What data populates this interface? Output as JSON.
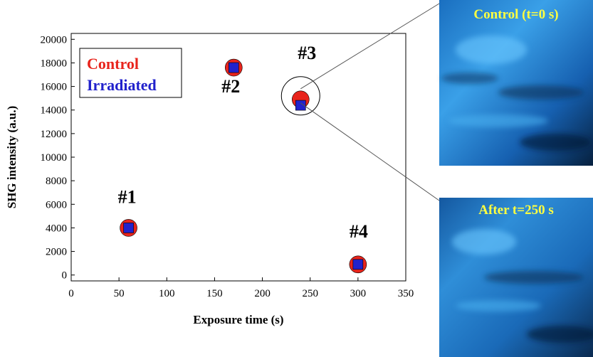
{
  "chart_data": {
    "type": "scatter",
    "xlabel": "Exposure time (s)",
    "ylabel": "SHG intensity (a.u.)",
    "x": [
      60,
      170,
      240,
      300
    ],
    "series": [
      {
        "name": "Control",
        "color": "#e8241c",
        "values": [
          4000,
          17600,
          14900,
          900
        ]
      },
      {
        "name": "Irradiated",
        "color": "#2222cc",
        "values": [
          4000,
          17600,
          14400,
          900
        ]
      }
    ],
    "annotations": [
      "#1",
      "#2",
      "#3",
      "#4"
    ],
    "xlim": [
      0,
      350
    ],
    "xticks": [
      0,
      50,
      100,
      150,
      200,
      250,
      300,
      350
    ],
    "ylim": [
      -500,
      20500
    ],
    "yticks": [
      0,
      2000,
      4000,
      6000,
      8000,
      10000,
      12000,
      14000,
      16000,
      18000,
      20000
    ],
    "image_labels": [
      "Control (t=0 s)",
      "After t=250 s"
    ]
  }
}
